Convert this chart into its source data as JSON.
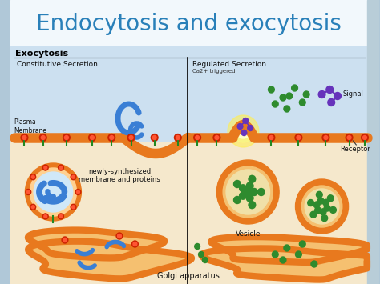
{
  "title": "Endocytosis and exocytosis",
  "title_color": "#2980b9",
  "title_fontsize": 20,
  "title_bg": "#f0f8ff",
  "diagram_bg_top": "#c5dff0",
  "diagram_bg_bot": "#f5e8cc",
  "section_label": "Exocytosis",
  "left_label": "Constitutive Secretion",
  "right_label": "Regulated Secretion",
  "right_sublabel": "Ca2+ triggered",
  "plasma_label": "Plasma\nMembrane",
  "newly_label": "newly-synthesized\nmembrane and proteins",
  "vesicle_label": "Vesicle",
  "golgi_label": "Golgi apparatus",
  "signal_label": "Signal",
  "receptor_label": "Receptor",
  "orange": "#e8791e",
  "orange_fill": "#f5c070",
  "blue_blob": "#3a7fd5",
  "green_dot": "#2e8b2e",
  "purple": "#6633bb",
  "dark_red": "#cc2200",
  "yellow_glow": "#ffee66",
  "white_cell": "#ffffff",
  "light_blue_vesicle": "#d0e8f8",
  "right_bar_color": "#b0c8d8"
}
